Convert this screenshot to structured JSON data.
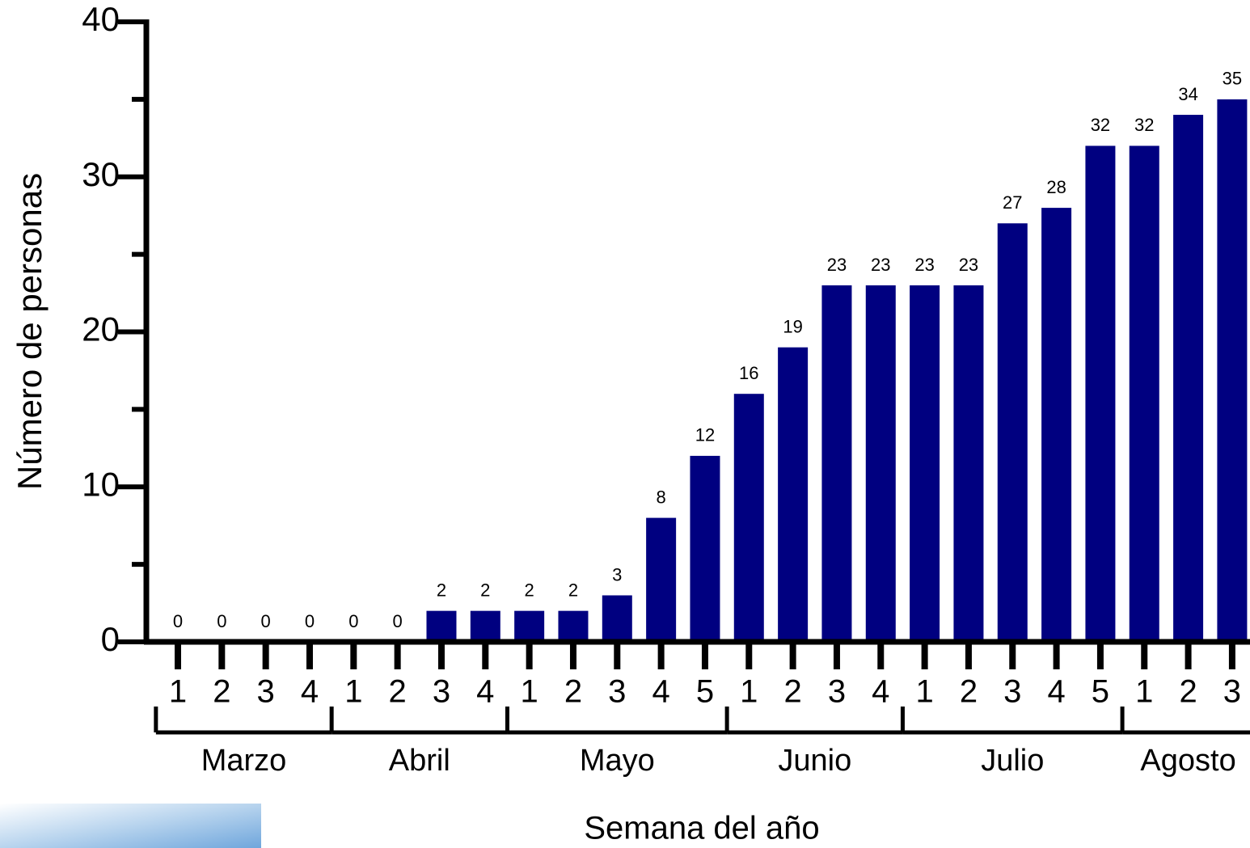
{
  "chart_data": {
    "type": "bar",
    "y_label": "Número de personas",
    "x_label": "Semana del año",
    "groups": [
      {
        "name": "Marzo",
        "categories": [
          "1",
          "2",
          "3",
          "4"
        ]
      },
      {
        "name": "Abril",
        "categories": [
          "1",
          "2",
          "3",
          "4"
        ]
      },
      {
        "name": "Mayo",
        "categories": [
          "1",
          "2",
          "3",
          "4",
          "5"
        ]
      },
      {
        "name": "Junio",
        "categories": [
          "1",
          "2",
          "3",
          "4"
        ]
      },
      {
        "name": "Julio",
        "categories": [
          "1",
          "2",
          "3",
          "4",
          "5"
        ]
      },
      {
        "name": "Agosto",
        "categories": [
          "1",
          "2",
          "3"
        ]
      }
    ],
    "values": [
      0,
      0,
      0,
      0,
      0,
      0,
      2,
      2,
      2,
      2,
      3,
      8,
      12,
      16,
      19,
      23,
      23,
      23,
      23,
      27,
      28,
      32,
      32,
      34,
      35
    ],
    "color": "#000080",
    "ylim": [
      0,
      40
    ],
    "yticks": [
      0,
      10,
      20,
      30,
      40
    ],
    "minor_yticks": [
      5,
      15,
      25,
      35
    ]
  }
}
